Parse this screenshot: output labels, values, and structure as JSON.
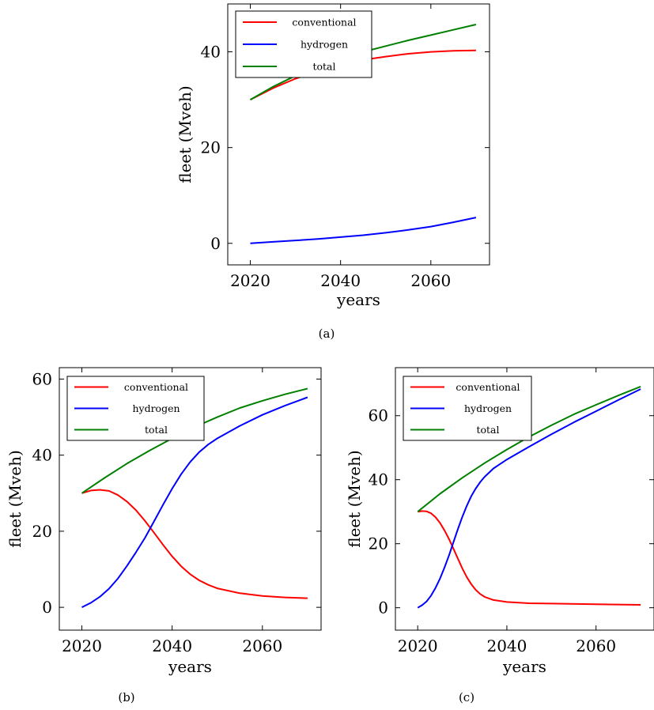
{
  "chart_data": [
    {
      "type": "line",
      "caption": "(a)",
      "xlabel": "years",
      "ylabel": "fleet (Mveh)",
      "xlim": [
        2015,
        2073
      ],
      "ylim": [
        -4.5,
        50
      ],
      "xticks": [
        2020,
        2040,
        2060
      ],
      "yticks": [
        0,
        20,
        40
      ],
      "legend_position": "top-left",
      "series": [
        {
          "name": "conventional",
          "color": "#ff0000",
          "x": [
            2020,
            2025,
            2030,
            2035,
            2040,
            2045,
            2050,
            2055,
            2060,
            2065,
            2070
          ],
          "y": [
            30.0,
            32.4,
            34.4,
            36.0,
            37.3,
            38.3,
            39.0,
            39.6,
            40.0,
            40.2,
            40.3
          ]
        },
        {
          "name": "hydrogen",
          "color": "#0000ff",
          "x": [
            2020,
            2025,
            2030,
            2035,
            2040,
            2045,
            2050,
            2055,
            2060,
            2065,
            2070
          ],
          "y": [
            0.0,
            0.3,
            0.6,
            0.9,
            1.3,
            1.7,
            2.2,
            2.8,
            3.5,
            4.4,
            5.4
          ]
        },
        {
          "name": "total",
          "color": "#008000",
          "x": [
            2020,
            2025,
            2030,
            2035,
            2040,
            2045,
            2050,
            2055,
            2060,
            2065,
            2070
          ],
          "y": [
            30.0,
            32.7,
            35.0,
            36.9,
            38.6,
            40.0,
            41.2,
            42.4,
            43.5,
            44.6,
            45.7
          ]
        }
      ]
    },
    {
      "type": "line",
      "caption": "(b)",
      "xlabel": "years",
      "ylabel": "fleet (Mveh)",
      "xlim": [
        2015,
        2073
      ],
      "ylim": [
        -6,
        63
      ],
      "xticks": [
        2020,
        2040,
        2060
      ],
      "yticks": [
        0,
        20,
        40,
        60
      ],
      "legend_position": "top-left",
      "series": [
        {
          "name": "conventional",
          "color": "#ff0000",
          "x": [
            2020,
            2022,
            2024,
            2026,
            2028,
            2030,
            2032,
            2034,
            2036,
            2038,
            2040,
            2042,
            2044,
            2046,
            2048,
            2050,
            2055,
            2060,
            2065,
            2070
          ],
          "y": [
            30.0,
            30.7,
            30.9,
            30.6,
            29.5,
            27.8,
            25.5,
            22.7,
            19.6,
            16.4,
            13.4,
            10.8,
            8.7,
            7.1,
            5.9,
            5.0,
            3.7,
            3.0,
            2.6,
            2.4
          ]
        },
        {
          "name": "hydrogen",
          "color": "#0000ff",
          "x": [
            2020,
            2022,
            2024,
            2026,
            2028,
            2030,
            2032,
            2034,
            2036,
            2038,
            2040,
            2042,
            2044,
            2046,
            2048,
            2050,
            2055,
            2060,
            2065,
            2070
          ],
          "y": [
            0.0,
            1.2,
            2.8,
            4.9,
            7.6,
            10.9,
            14.5,
            18.3,
            22.6,
            27.0,
            31.2,
            35.0,
            38.2,
            40.8,
            42.8,
            44.4,
            47.7,
            50.6,
            53.0,
            55.2
          ]
        },
        {
          "name": "total",
          "color": "#008000",
          "x": [
            2020,
            2025,
            2030,
            2035,
            2040,
            2045,
            2050,
            2055,
            2060,
            2065,
            2070
          ],
          "y": [
            30.0,
            34.0,
            37.8,
            41.2,
            44.4,
            47.4,
            50.0,
            52.4,
            54.3,
            56.0,
            57.5
          ]
        }
      ]
    },
    {
      "type": "line",
      "caption": "(c)",
      "xlabel": "years",
      "ylabel": "fleet (Mveh)",
      "xlim": [
        2015,
        2073
      ],
      "ylim": [
        -7,
        75
      ],
      "xticks": [
        2020,
        2040,
        2060
      ],
      "yticks": [
        0,
        20,
        40,
        60
      ],
      "legend_position": "top-left",
      "series": [
        {
          "name": "conventional",
          "color": "#ff0000",
          "x": [
            2020,
            2021,
            2022,
            2023,
            2024,
            2025,
            2026,
            2027,
            2028,
            2029,
            2030,
            2031,
            2032,
            2033,
            2034,
            2035,
            2037,
            2040,
            2045,
            2050,
            2060,
            2070
          ],
          "y": [
            30.0,
            30.2,
            30.1,
            29.5,
            28.3,
            26.5,
            24.2,
            21.5,
            18.5,
            15.4,
            12.3,
            9.6,
            7.4,
            5.6,
            4.3,
            3.4,
            2.4,
            1.8,
            1.4,
            1.3,
            1.1,
            0.9
          ]
        },
        {
          "name": "hydrogen",
          "color": "#0000ff",
          "x": [
            2020,
            2021,
            2022,
            2023,
            2024,
            2025,
            2026,
            2027,
            2028,
            2029,
            2030,
            2031,
            2032,
            2033,
            2034,
            2035,
            2037,
            2040,
            2045,
            2050,
            2055,
            2060,
            2065,
            2070
          ],
          "y": [
            0.0,
            0.8,
            2.0,
            3.8,
            6.2,
            9.1,
            12.5,
            16.3,
            20.4,
            24.5,
            28.4,
            31.8,
            34.8,
            37.2,
            39.2,
            40.9,
            43.5,
            46.3,
            50.3,
            54.2,
            57.9,
            61.4,
            64.9,
            68.3
          ]
        },
        {
          "name": "total",
          "color": "#008000",
          "x": [
            2020,
            2025,
            2030,
            2035,
            2040,
            2045,
            2050,
            2055,
            2060,
            2065,
            2070
          ],
          "y": [
            30.0,
            35.6,
            40.6,
            45.2,
            49.4,
            53.4,
            57.0,
            60.4,
            63.4,
            66.3,
            69.1
          ]
        }
      ]
    }
  ]
}
